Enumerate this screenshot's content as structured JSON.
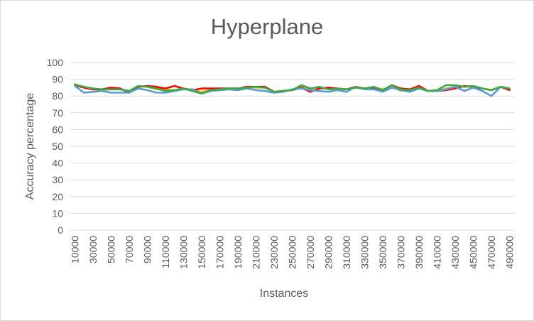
{
  "chart_data": {
    "type": "line",
    "title": "Hyperplane",
    "xlabel": "Instances",
    "ylabel": "Accuracy percentage",
    "ylim": [
      0,
      100
    ],
    "yticks": [
      "0",
      "10",
      "20",
      "30",
      "40",
      "50",
      "60",
      "70",
      "80",
      "90",
      "100"
    ],
    "grid": true,
    "legend": "none",
    "x": [
      10000,
      20000,
      30000,
      40000,
      50000,
      60000,
      70000,
      80000,
      90000,
      100000,
      110000,
      120000,
      130000,
      140000,
      150000,
      160000,
      170000,
      180000,
      190000,
      200000,
      210000,
      220000,
      230000,
      240000,
      250000,
      260000,
      270000,
      280000,
      290000,
      300000,
      310000,
      320000,
      330000,
      340000,
      350000,
      360000,
      370000,
      380000,
      390000,
      400000,
      410000,
      420000,
      430000,
      440000,
      450000,
      460000,
      470000,
      480000,
      490000
    ],
    "xtick_labels": [
      "10000",
      "30000",
      "50000",
      "70000",
      "90000",
      "110000",
      "130000",
      "150000",
      "170000",
      "190000",
      "210000",
      "230000",
      "250000",
      "270000",
      "290000",
      "310000",
      "330000",
      "350000",
      "370000",
      "390000",
      "410000",
      "430000",
      "450000",
      "470000",
      "490000"
    ],
    "series": [
      {
        "color": "#ffc000",
        "values": [
          86.5,
          85,
          84,
          83.5,
          84,
          84,
          83,
          85.5,
          85.5,
          84,
          84,
          83.5,
          84.5,
          83.5,
          82.5,
          83.5,
          84,
          84.5,
          84.5,
          85,
          85,
          85,
          82.5,
          83,
          83.5,
          85.5,
          84.5,
          85,
          84,
          83.5,
          84,
          85,
          84.5,
          85,
          84,
          85.5,
          83,
          83.5,
          84.5,
          83,
          83.5,
          84.5,
          85.5,
          85.5,
          85.5,
          84.5,
          83.5,
          85.5,
          84.5
        ]
      },
      {
        "color": "#ff0000",
        "values": [
          86.5,
          85,
          84,
          84,
          85,
          84.5,
          82,
          85.5,
          86,
          85.5,
          84.5,
          86,
          84.5,
          83.5,
          84.5,
          84.5,
          84.5,
          84.5,
          84.5,
          85.5,
          85.5,
          85.5,
          82.5,
          83,
          83.5,
          85,
          82.5,
          84.5,
          85,
          84.5,
          84,
          85.5,
          84.5,
          85,
          83.5,
          86.5,
          84.5,
          84,
          86,
          83,
          83,
          83.5,
          84.5,
          86,
          85.5,
          84.5,
          83.5,
          85.5,
          83.5
        ]
      },
      {
        "color": "#5b9bd5",
        "values": [
          86,
          82,
          82.5,
          83,
          82,
          82,
          82,
          84.5,
          83.5,
          82,
          82,
          83,
          84,
          84,
          81.5,
          83,
          83.5,
          84,
          83.5,
          84.5,
          83.5,
          83,
          82,
          82.5,
          84,
          84.5,
          83.5,
          83,
          82.5,
          83.5,
          82.5,
          85.5,
          84,
          84,
          82.5,
          85,
          83.5,
          82.5,
          84.5,
          83,
          83,
          84,
          85.5,
          83,
          85,
          83,
          80,
          85.5,
          84.5
        ]
      },
      {
        "color": "#3aa94a",
        "values": [
          87,
          85.5,
          84.5,
          84,
          84,
          84,
          83,
          86,
          85.5,
          84.5,
          83,
          83.5,
          84.5,
          83,
          81.5,
          83.5,
          84,
          84.5,
          84.5,
          85,
          85.5,
          85,
          82.5,
          83,
          83.5,
          86.5,
          84.5,
          85.5,
          84,
          84.5,
          84,
          85,
          84.5,
          85.5,
          83.5,
          86.5,
          84,
          83.5,
          85,
          83,
          83.5,
          86.5,
          86.5,
          85.5,
          86,
          84.5,
          83.5,
          85.5,
          84.5
        ]
      }
    ]
  }
}
